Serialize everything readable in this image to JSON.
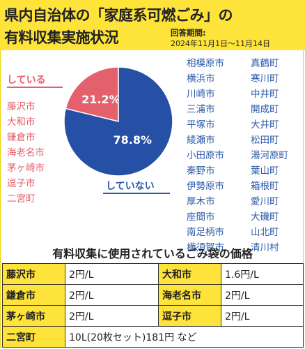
{
  "title": {
    "line1": "県内自治体の「家庭系可燃ごみ」の",
    "line2": "有料収集実施状況",
    "period_label": "回答期間:",
    "period_value": "2024年11月1日〜11月14日"
  },
  "colors": {
    "yes": "#e4606c",
    "no": "#2550a6",
    "header": "#fde33a"
  },
  "chart_data": {
    "type": "pie",
    "slices": [
      {
        "label": "している",
        "value": 21.2,
        "display": "21.2%"
      },
      {
        "label": "していない",
        "value": 78.8,
        "display": "78.8%"
      }
    ]
  },
  "yes_cities": [
    "藤沢市",
    "大和市",
    "鎌倉市",
    "海老名市",
    "茅ヶ崎市",
    "逗子市",
    "二宮町"
  ],
  "no_cities": [
    "相模原市",
    "真鶴町",
    "横浜市",
    "寒川町",
    "川崎市",
    "中井町",
    "三浦市",
    "開成町",
    "平塚市",
    "大井町",
    "綾瀬市",
    "松田町",
    "小田原市",
    "湯河原町",
    "秦野市",
    "葉山町",
    "伊勢原市",
    "箱根町",
    "厚木市",
    "愛川町",
    "座間市",
    "大磯町",
    "南足柄市",
    "山北町",
    "横須賀市",
    "清川村"
  ],
  "bag_price": {
    "title": "有料収集に使用されているごみ袋の価格",
    "rows": [
      [
        {
          "city": "藤沢市",
          "price": "2円/L"
        },
        {
          "city": "大和市",
          "price": "1.6円/L"
        }
      ],
      [
        {
          "city": "鎌倉市",
          "price": "2円/L"
        },
        {
          "city": "海老名市",
          "price": "2円/L"
        }
      ],
      [
        {
          "city": "茅ヶ崎市",
          "price": "2円/L"
        },
        {
          "city": "逗子市",
          "price": "2円/L"
        }
      ]
    ],
    "last": {
      "city": "二宮町",
      "price": "10L(20枚セット)181円 など"
    }
  }
}
